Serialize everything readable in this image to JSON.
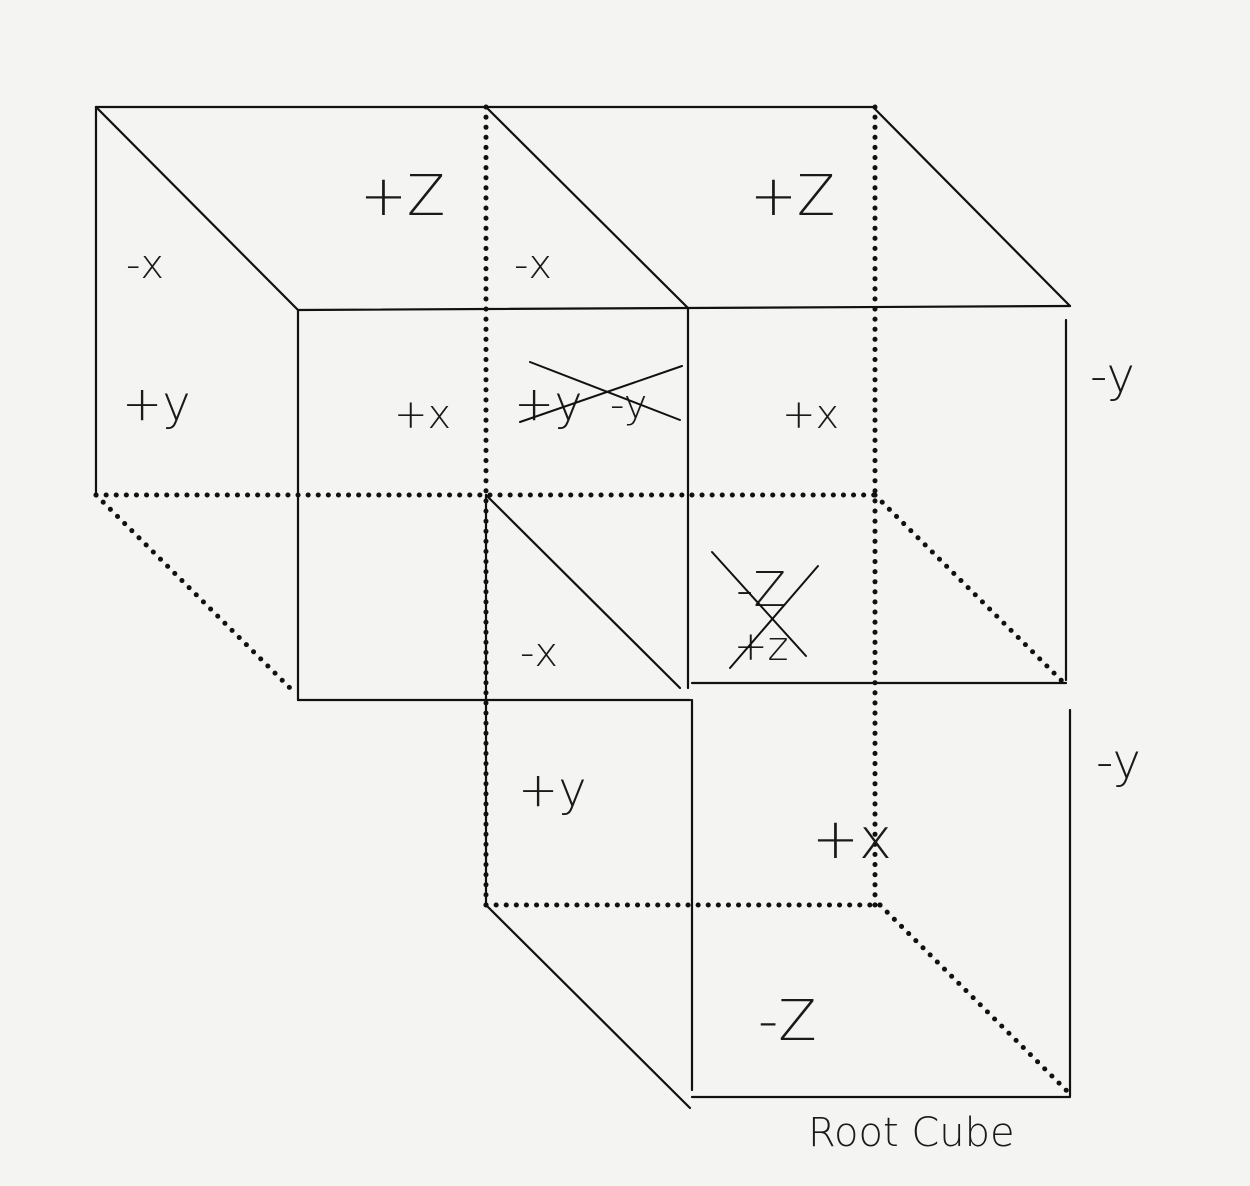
{
  "labels": {
    "a_plus_z": "+Z",
    "b_plus_z": "+Z",
    "a_minus_x": "-x",
    "b_minus_x": "-x",
    "c_minus_x": "-x",
    "a_plus_y": "+y",
    "c_plus_y": "+y",
    "a_plus_x": "+x",
    "b_plus_x": "+x",
    "d_plus_x": "+x",
    "crossed_plus_y": "+y",
    "crossed_minus_y": "-y",
    "crossed_minus_z": "-Z",
    "crossed_plus_z": "+z",
    "b_minus_y": "-y",
    "d_minus_y": "-y",
    "d_minus_z": "-Z",
    "caption": "Root Cube"
  }
}
